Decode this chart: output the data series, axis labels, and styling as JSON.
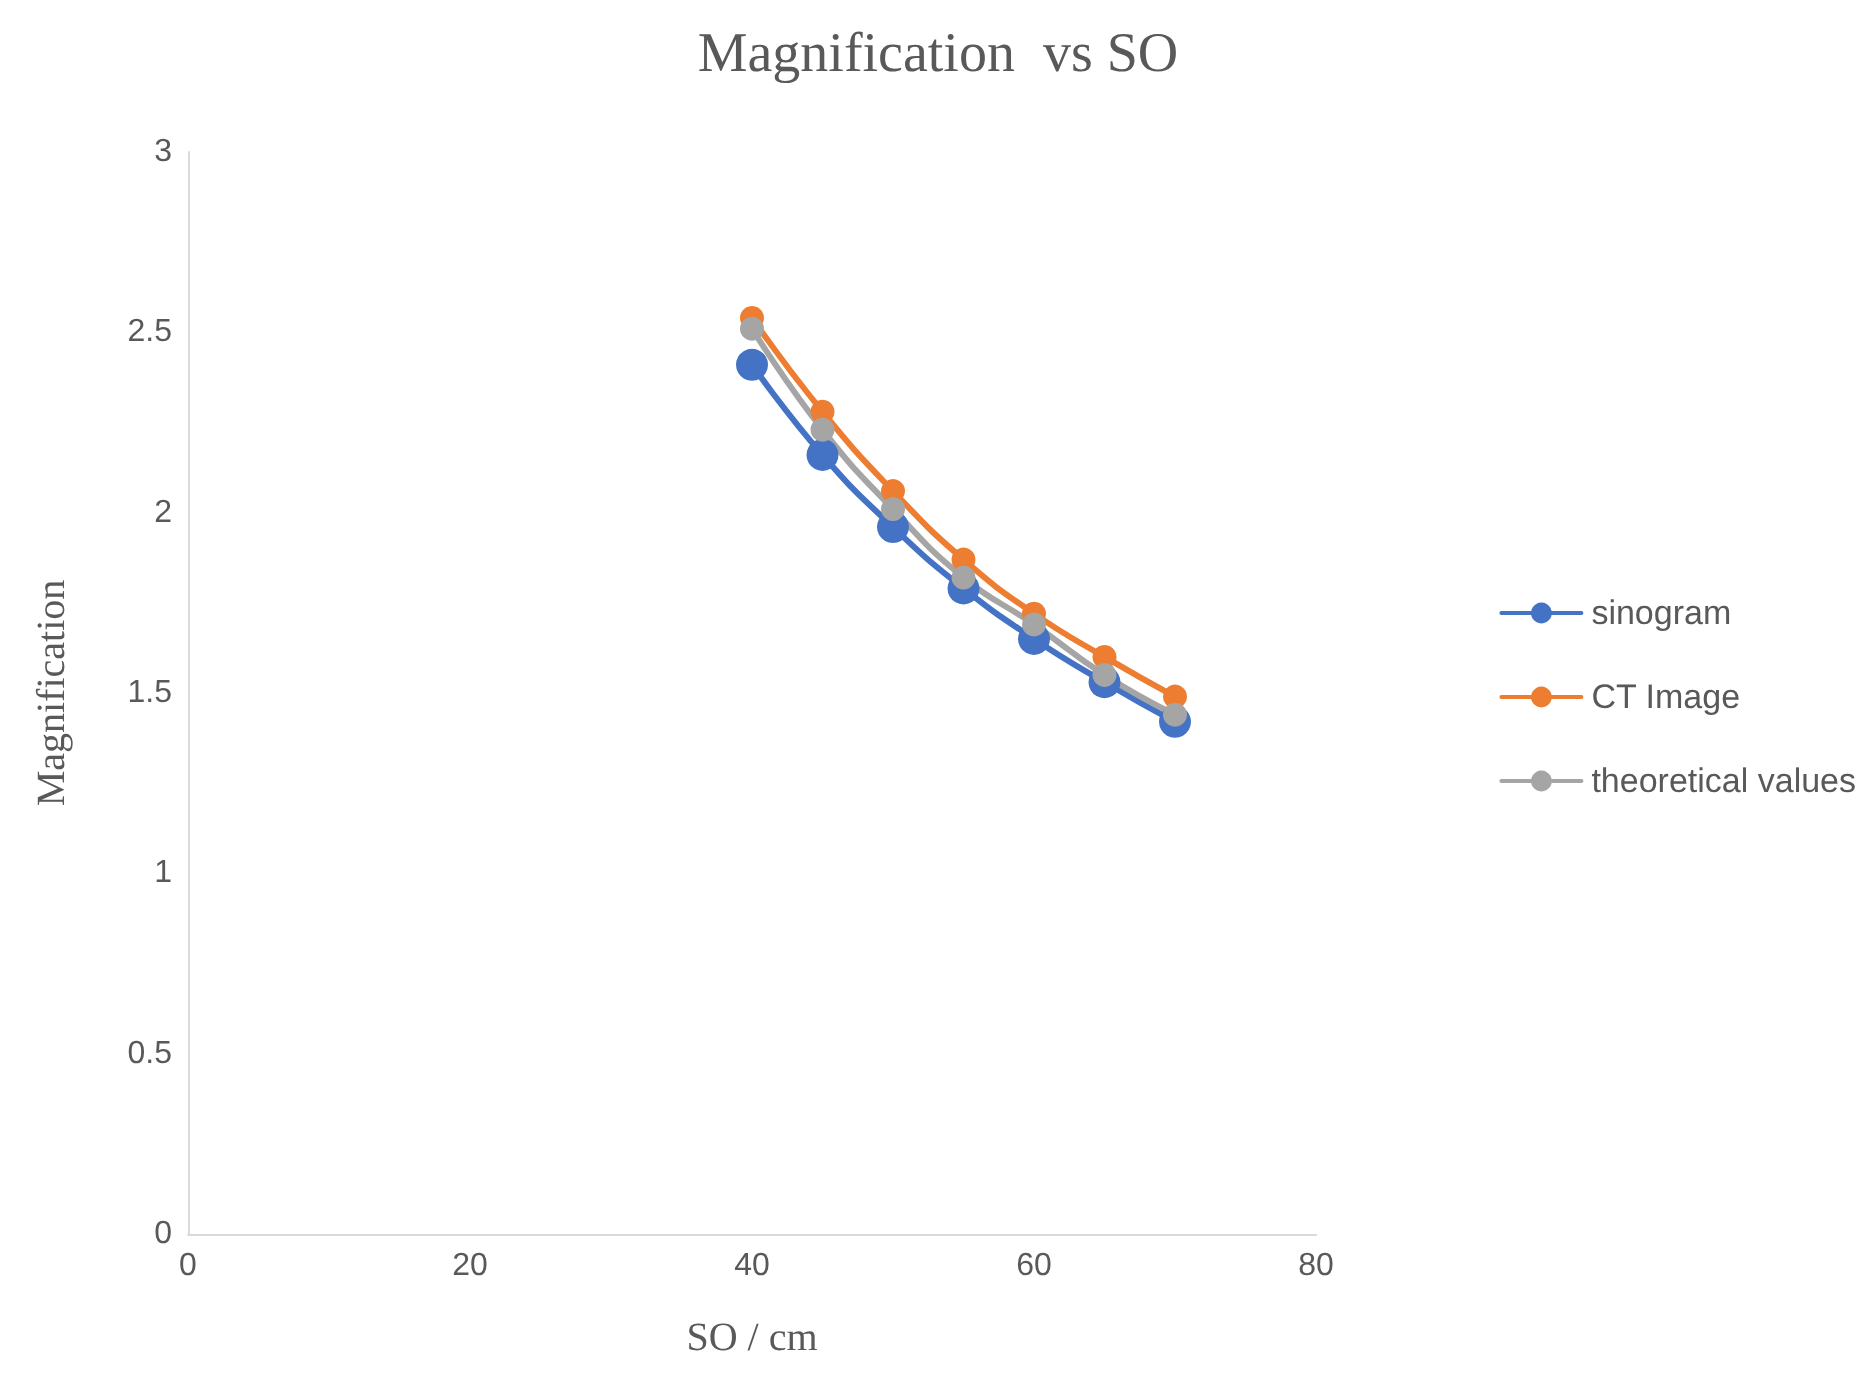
{
  "chart_data": {
    "type": "line",
    "title": "Magnification  vs SO",
    "xlabel": "SO / cm",
    "ylabel": "Magnification",
    "x": [
      40,
      45,
      50,
      55,
      60,
      65,
      70
    ],
    "series": [
      {
        "name": "sinogram",
        "color": "#4472c4",
        "values": [
          2.41,
          2.16,
          1.96,
          1.79,
          1.65,
          1.53,
          1.42
        ]
      },
      {
        "name": "CT Image",
        "color": "#ed7d31",
        "values": [
          2.54,
          2.28,
          2.06,
          1.87,
          1.72,
          1.6,
          1.49
        ]
      },
      {
        "name": "theoretical values",
        "color": "#a5a5a5",
        "values": [
          2.51,
          2.23,
          2.01,
          1.82,
          1.69,
          1.55,
          1.44
        ]
      }
    ],
    "xlim": [
      0,
      80
    ],
    "xticks": [
      0,
      20,
      40,
      60,
      80
    ],
    "ylim": [
      0,
      3
    ],
    "yticks": [
      0,
      0.5,
      1,
      1.5,
      2,
      2.5,
      3
    ],
    "grid": false,
    "legend": "right",
    "marker": "circle",
    "line_style": "solid"
  }
}
